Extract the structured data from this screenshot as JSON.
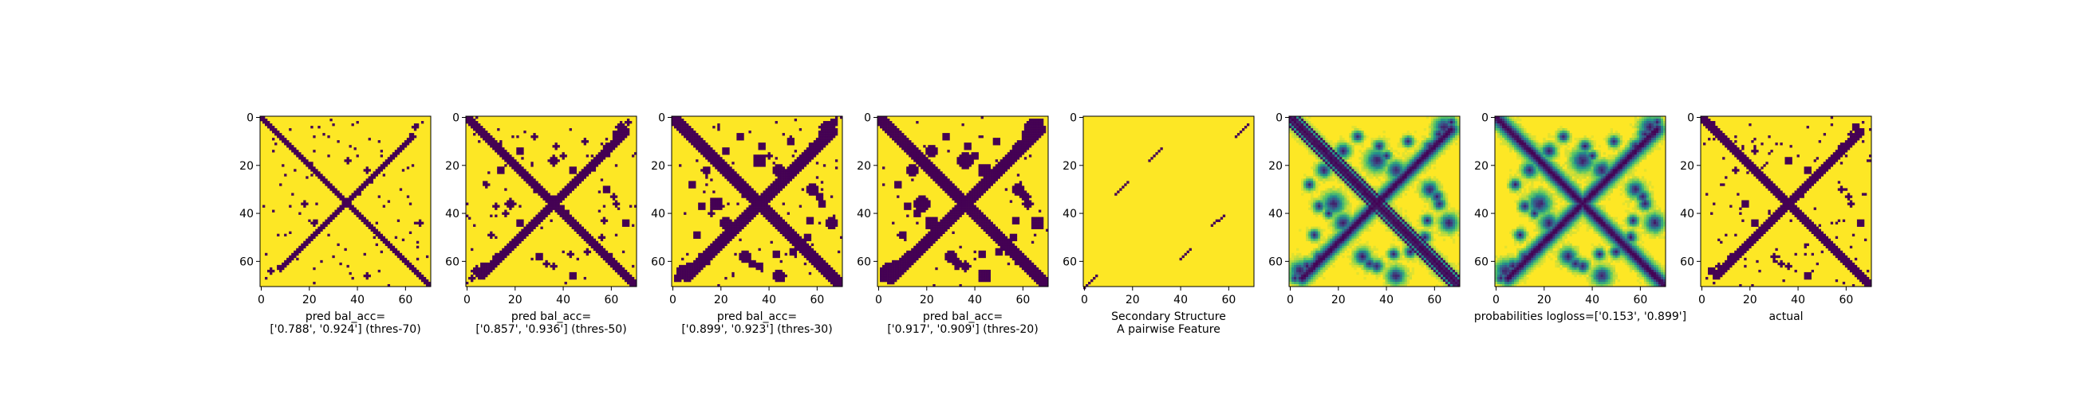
{
  "colors": {
    "dark": "#440154",
    "yellow": "#fde725",
    "viridis_stops": [
      "#440154",
      "#3b528b",
      "#21918c",
      "#5ec962",
      "#fde725"
    ]
  },
  "chart_data": [
    {
      "type": "heatmap",
      "caption_lines": [
        "pred bal_acc=",
        "['0.788', '0.924'] (thres-70)"
      ],
      "xticks": [
        "0",
        "20",
        "40",
        "60"
      ],
      "yticks": [
        "0",
        "20",
        "40",
        "60"
      ],
      "xlim": [
        0,
        71
      ],
      "ylim": [
        71,
        0
      ],
      "colormap": "binary-viridis",
      "matrix": {
        "size": 71,
        "band_width": 1.6,
        "anti_diagonal": {
          "from": [
            8,
            63
          ],
          "to": [
            45,
            26
          ],
          "width": 1.6
        },
        "blob_scale": 0.5,
        "noise": 0.01
      }
    },
    {
      "type": "heatmap",
      "caption_lines": [
        "pred bal_acc=",
        "['0.857', '0.936'] (thres-50)"
      ],
      "xticks": [
        "0",
        "20",
        "40",
        "60"
      ],
      "yticks": [
        "0",
        "20",
        "40",
        "60"
      ],
      "xlim": [
        0,
        71
      ],
      "ylim": [
        71,
        0
      ],
      "colormap": "binary-viridis",
      "matrix": {
        "size": 71,
        "band_width": 2.6,
        "anti_diagonal": {
          "from": [
            6,
            66
          ],
          "to": [
            46,
            26
          ],
          "width": 2.4
        },
        "blob_scale": 0.85,
        "noise": 0.012
      }
    },
    {
      "type": "heatmap",
      "caption_lines": [
        "pred bal_acc=",
        "['0.899', '0.923'] (thres-30)"
      ],
      "xticks": [
        "0",
        "20",
        "40",
        "60"
      ],
      "yticks": [
        "0",
        "20",
        "40",
        "60"
      ],
      "xlim": [
        0,
        71
      ],
      "ylim": [
        71,
        0
      ],
      "colormap": "binary-viridis",
      "matrix": {
        "size": 71,
        "band_width": 3.4,
        "anti_diagonal": {
          "from": [
            6,
            66
          ],
          "to": [
            48,
            24
          ],
          "width": 3.2
        },
        "blob_scale": 1.15,
        "noise": 0.012
      }
    },
    {
      "type": "heatmap",
      "caption_lines": [
        "pred bal_acc=",
        "['0.917', '0.909'] (thres-20)"
      ],
      "xticks": [
        "0",
        "20",
        "40",
        "60"
      ],
      "yticks": [
        "0",
        "20",
        "40",
        "60"
      ],
      "xlim": [
        0,
        71
      ],
      "ylim": [
        71,
        0
      ],
      "colormap": "binary-viridis",
      "matrix": {
        "size": 71,
        "band_width": 4.0,
        "anti_diagonal": {
          "from": [
            5,
            67
          ],
          "to": [
            49,
            23
          ],
          "width": 3.8
        },
        "blob_scale": 1.35,
        "noise": 0.012
      }
    },
    {
      "type": "heatmap",
      "caption_lines": [
        "Secondary Structure",
        "A pairwise Feature"
      ],
      "xticks": [
        "0",
        "20",
        "40",
        "60"
      ],
      "yticks": [
        "0",
        "20",
        "40",
        "60"
      ],
      "xlim": [
        0,
        71
      ],
      "ylim": [
        71,
        0
      ],
      "colormap": "binary-viridis",
      "matrix": {
        "secondary_structure": [
          [
            [
              0,
              71
            ],
            [
              5,
              66
            ]
          ],
          [
            [
              13,
              32
            ],
            [
              18,
              27
            ]
          ],
          [
            [
              27,
              18
            ],
            [
              32,
              13
            ]
          ],
          [
            [
              40,
              59
            ],
            [
              44,
              55
            ]
          ],
          [
            [
              53,
              45
            ],
            [
              58,
              41
            ]
          ],
          [
            [
              63,
              8
            ],
            [
              68,
              3
            ]
          ]
        ]
      }
    },
    {
      "type": "heatmap",
      "caption_lines": [
        ""
      ],
      "xticks": [
        "0",
        "20",
        "40",
        "60"
      ],
      "yticks": [
        "0",
        "20",
        "40",
        "60"
      ],
      "xlim": [
        0,
        71
      ],
      "ylim": [
        71,
        0
      ],
      "colormap": "viridis",
      "matrix": {
        "size": 71,
        "continuous": true,
        "band_width": 3.0,
        "anti_diagonal": {
          "from": [
            5,
            67
          ],
          "to": [
            48,
            24
          ],
          "width": 3.2
        },
        "blob_scale": 1.2,
        "stripes": true
      }
    },
    {
      "type": "heatmap",
      "caption_lines": [
        "probabilities logloss=['0.153', '0.899']"
      ],
      "xticks": [
        "0",
        "20",
        "40",
        "60"
      ],
      "yticks": [
        "0",
        "20",
        "40",
        "60"
      ],
      "xlim": [
        0,
        71
      ],
      "ylim": [
        71,
        0
      ],
      "colormap": "viridis",
      "matrix": {
        "size": 71,
        "continuous": true,
        "band_width": 3.4,
        "anti_diagonal": {
          "from": [
            5,
            67
          ],
          "to": [
            49,
            23
          ],
          "width": 3.4
        },
        "blob_scale": 1.25,
        "stripes": false
      }
    },
    {
      "type": "heatmap",
      "caption_lines": [
        "actual"
      ],
      "xticks": [
        "0",
        "20",
        "40",
        "60"
      ],
      "yticks": [
        "0",
        "20",
        "40",
        "60"
      ],
      "xlim": [
        0,
        71
      ],
      "ylim": [
        71,
        0
      ],
      "colormap": "binary-viridis",
      "matrix": {
        "size": 71,
        "band_width": 2.2,
        "anti_diagonal": {
          "from": [
            6,
            66
          ],
          "to": [
            46,
            26
          ],
          "width": 2.2
        },
        "blob_scale": 0.7,
        "noise": 0.018
      }
    }
  ]
}
